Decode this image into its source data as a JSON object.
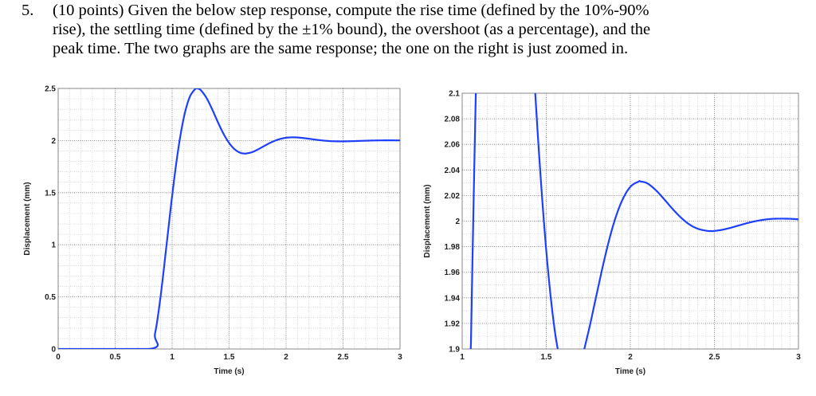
{
  "question": {
    "number": "5.",
    "lines": [
      "(10 points) Given the below step response, compute the rise time (defined by the 10%-90%",
      "rise), the settling time (defined by the ±1% bound), the overshoot (as a percentage), and the",
      "peak time. The two graphs are the same response; the one on the right is just zoomed in."
    ]
  },
  "chart_data": [
    {
      "type": "line",
      "xlabel": "Time (s)",
      "ylabel": "Displacement (mm)",
      "xlim": [
        0,
        3
      ],
      "ylim": [
        0,
        2.5
      ],
      "xticks": [
        "0",
        "0.5",
        "1",
        "1.5",
        "2",
        "2.5",
        "3"
      ],
      "yticks": [
        "0",
        "0.5",
        "1",
        "1.5",
        "2",
        "2.5"
      ],
      "grid": true,
      "line_color": "#1f3fff",
      "series_ref": "response"
    },
    {
      "type": "line",
      "xlabel": "Time (s)",
      "ylabel": "Displacement (mm)",
      "xlim": [
        1,
        3
      ],
      "ylim": [
        1.9,
        2.1
      ],
      "xticks": [
        "1",
        "1.5",
        "2",
        "2.5",
        "3"
      ],
      "yticks": [
        "1.9",
        "1.92",
        "1.94",
        "1.96",
        "1.98",
        "2",
        "2.02",
        "2.04",
        "2.06",
        "2.08",
        "2.1"
      ],
      "grid": true,
      "line_color": "#1f3fff",
      "series_ref": "response"
    }
  ],
  "response": {
    "x": [
      0,
      0.8,
      0.85,
      0.9,
      0.95,
      1.0,
      1.05,
      1.1,
      1.15,
      1.2,
      1.22,
      1.25,
      1.3,
      1.35,
      1.4,
      1.45,
      1.5,
      1.55,
      1.6,
      1.64,
      1.65,
      1.7,
      1.75,
      1.8,
      1.85,
      1.9,
      1.95,
      2.0,
      2.05,
      2.06,
      2.1,
      2.15,
      2.2,
      2.25,
      2.3,
      2.35,
      2.4,
      2.45,
      2.48,
      2.5,
      2.55,
      2.6,
      2.65,
      2.7,
      2.75,
      2.8,
      2.85,
      2.9,
      2.95,
      3.0
    ],
    "y": [
      0,
      0,
      0.148,
      0.516,
      0.988,
      1.468,
      1.889,
      2.207,
      2.406,
      2.492,
      2.499,
      2.485,
      2.412,
      2.303,
      2.18,
      2.067,
      1.977,
      1.915,
      1.882,
      1.875,
      1.876,
      1.888,
      1.913,
      1.943,
      1.9725,
      1.9976,
      2.0158,
      2.0268,
      2.031,
      2.031,
      2.0296,
      2.0244,
      2.0173,
      2.0097,
      2.0029,
      1.9975,
      1.9941,
      1.9925,
      1.9922,
      1.9923,
      1.9933,
      1.9949,
      1.9968,
      1.9986,
      2.0001,
      2.0012,
      2.0018,
      2.0019,
      2.0018,
      2.0014
    ]
  }
}
